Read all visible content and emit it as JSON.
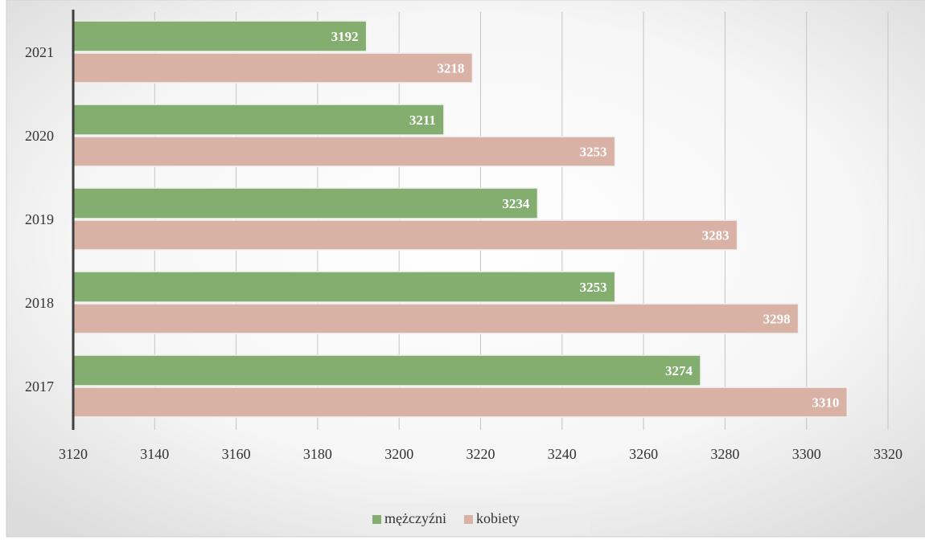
{
  "chart_data": {
    "type": "hbar",
    "categories": [
      "2021",
      "2020",
      "2019",
      "2018",
      "2017"
    ],
    "series": [
      {
        "name": "mężczyźni",
        "color": "#84ad70",
        "values": [
          3192,
          3211,
          3234,
          3253,
          3274
        ]
      },
      {
        "name": "kobiety",
        "color": "#d9b2a6",
        "values": [
          3218,
          3253,
          3283,
          3298,
          3310
        ]
      }
    ],
    "xlim": [
      3120,
      3320
    ],
    "xticks": [
      3120,
      3140,
      3160,
      3180,
      3200,
      3220,
      3240,
      3260,
      3280,
      3300,
      3320
    ],
    "grid": true,
    "legend": "bottom"
  }
}
